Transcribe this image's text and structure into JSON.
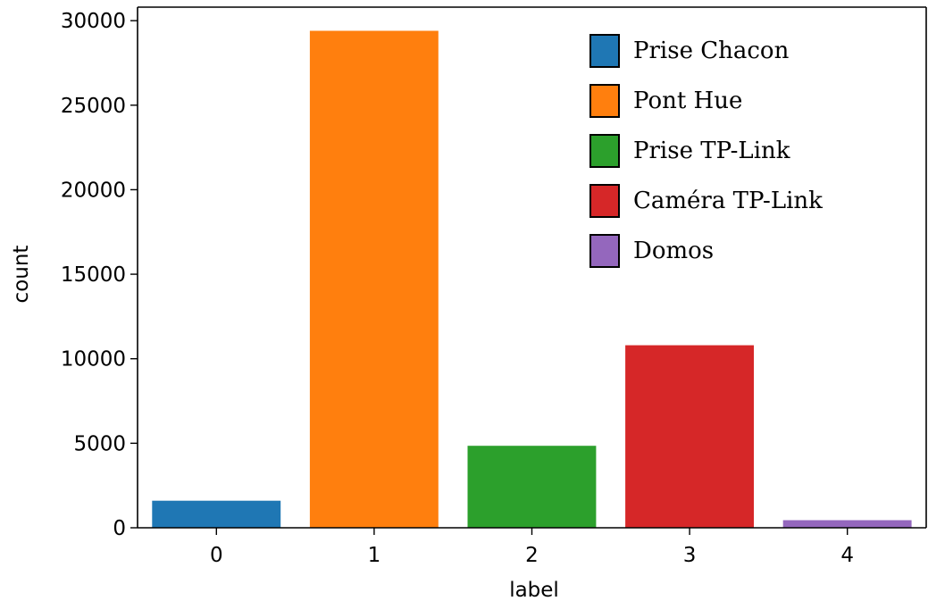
{
  "chart_data": {
    "type": "bar",
    "xlabel": "label",
    "ylabel": "count",
    "categories": [
      "0",
      "1",
      "2",
      "3",
      "4"
    ],
    "values": [
      1600,
      29400,
      4850,
      10800,
      450
    ],
    "colors": [
      "#1f77b4",
      "#ff7f0e",
      "#2ca02c",
      "#d62728",
      "#9467bd"
    ],
    "ylim": [
      0,
      30800
    ],
    "yticks": [
      0,
      5000,
      10000,
      15000,
      20000,
      25000,
      30000
    ],
    "ytick_labels": [
      "0",
      "5000",
      "10000",
      "15000",
      "20000",
      "25000",
      "30000"
    ],
    "grid": false,
    "legend": {
      "placement": "top-right",
      "entries": [
        {
          "label": "Prise Chacon",
          "color": "#1f77b4"
        },
        {
          "label": "Pont Hue",
          "color": "#ff7f0e"
        },
        {
          "label": "Prise TP-Link",
          "color": "#2ca02c"
        },
        {
          "label": "Caméra TP-Link",
          "color": "#d62728"
        },
        {
          "label": "Domos",
          "color": "#9467bd"
        }
      ]
    }
  }
}
